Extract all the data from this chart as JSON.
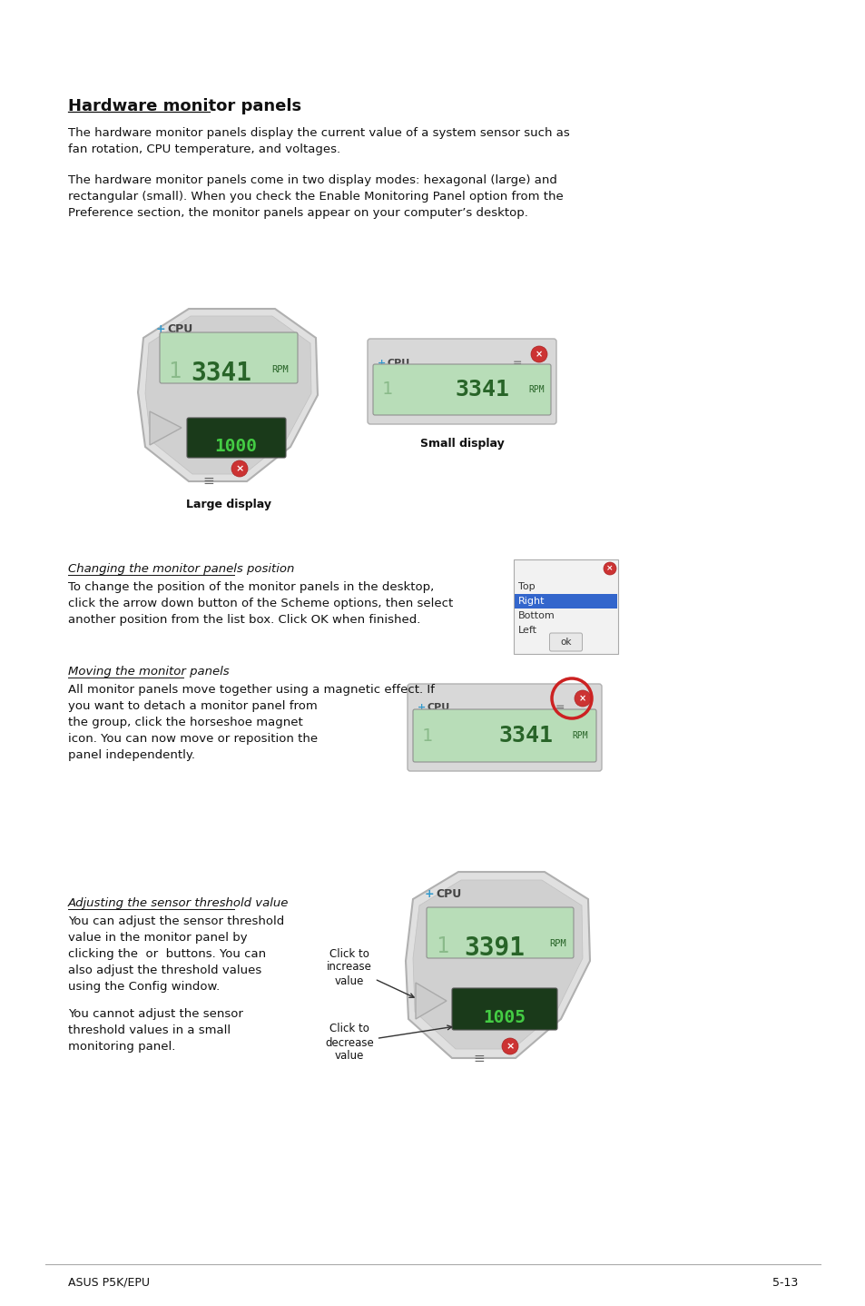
{
  "bg_color": "#ffffff",
  "title": "Hardware monitor panels",
  "para1_line1": "The hardware monitor panels display the current value of a system sensor such as",
  "para1_line2": "fan rotation, CPU temperature, and voltages.",
  "para2_line1": "The hardware monitor panels come in two display modes: hexagonal (large) and",
  "para2_line2": "rectangular (small). When you check the Enable Monitoring Panel option from the",
  "para2_line3": "Preference section, the monitor panels appear on your computer’s desktop.",
  "label_large": "Large display",
  "label_small": "Small display",
  "sec1_title": "Changing the monitor panels position",
  "sec1_line1": "To change the position of the monitor panels in the desktop,",
  "sec1_line2": "click the arrow down button of the Scheme options, then select",
  "sec1_line3": "another position from the list box. Click OK when finished.",
  "sec2_title": "Moving the monitor panels",
  "sec2_line1": "All monitor panels move together using a magnetic effect. If",
  "sec2_line2": "you want to detach a monitor panel from",
  "sec2_line3": "the group, click the horseshoe magnet",
  "sec2_line4": "icon. You can now move or reposition the",
  "sec2_line5": "panel independently.",
  "sec3_title": "Adjusting the sensor threshold value",
  "sec3_line1": "You can adjust the sensor threshold",
  "sec3_line2": "value in the monitor panel by",
  "sec3_line3": "clicking the  or  buttons. You can",
  "sec3_line4": "also adjust the threshold values",
  "sec3_line5": "using the Config window.",
  "sec3_line6": "You cannot adjust the sensor",
  "sec3_line7": "threshold values in a small",
  "sec3_line8": "monitoring panel.",
  "ann_increase": "Click to\nincrease\nvalue",
  "ann_decrease": "Click to\ndecrease\nvalue",
  "footer_left": "ASUS P5K/EPU",
  "footer_right": "5-13",
  "list_items": [
    "Top",
    "Right",
    "Bottom",
    "Left"
  ],
  "lcd_value1": "3341",
  "lcd_value2": "3341",
  "lcd_value3": "3341",
  "lcd_value4": "3391",
  "bot_lcd1": "1000",
  "bot_lcd2": "1005",
  "lcd_unit": "RPM",
  "text_color": "#111111"
}
